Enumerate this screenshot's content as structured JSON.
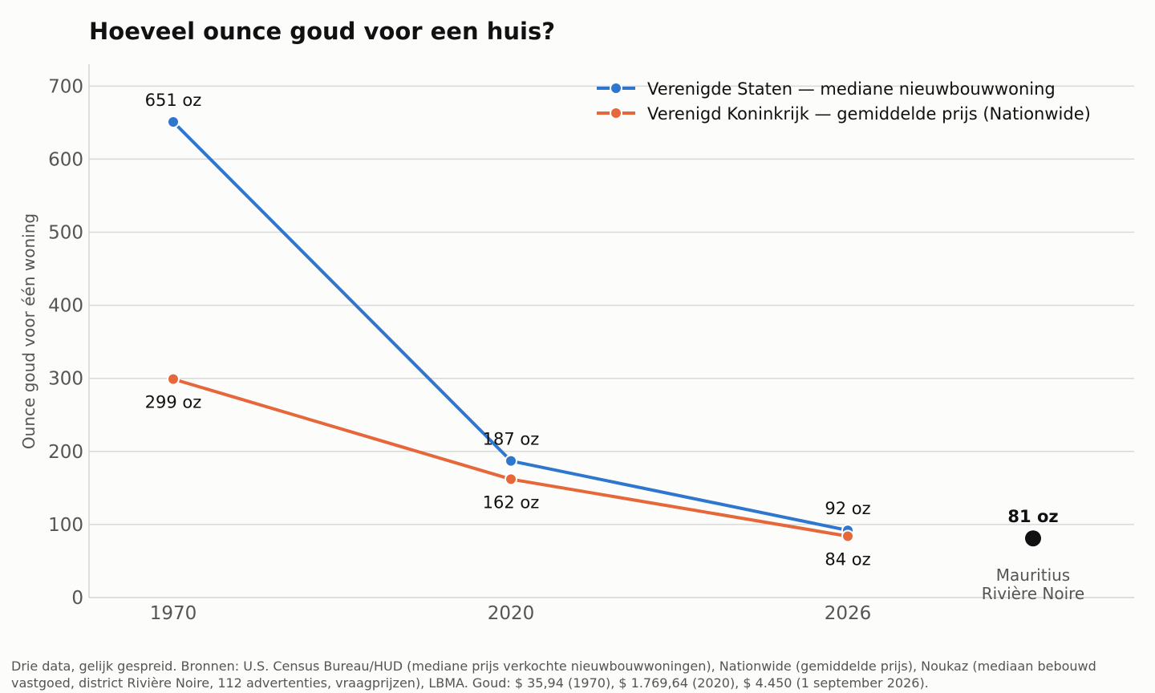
{
  "chart_data": {
    "type": "line",
    "title": "Hoeveel ounce goud voor een huis?",
    "xlabel": "",
    "ylabel": "Ounce goud voor één woning",
    "ylim": [
      0,
      730
    ],
    "yticks": [
      0,
      100,
      200,
      300,
      400,
      500,
      600,
      700
    ],
    "categories": [
      "1970",
      "2020",
      "2026"
    ],
    "grid": "horizontal",
    "legend_position": "top-right",
    "series": [
      {
        "name": "Verenigde Staten — mediane nieuwbouwwoning",
        "color": "#2f76cf",
        "values": [
          651,
          187,
          92
        ],
        "labels": [
          "651 oz",
          "187 oz",
          "92 oz"
        ]
      },
      {
        "name": "Verenigd Koninkrijk — gemiddelde prijs (Nationwide)",
        "color": "#e5673a",
        "values": [
          299,
          162,
          84
        ],
        "labels": [
          "299 oz",
          "162 oz",
          "84 oz"
        ]
      }
    ],
    "highlight": {
      "value": 81,
      "label": "81 oz",
      "category_line1": "Mauritius",
      "category_line2": "Rivière Noire",
      "color": "#111111"
    }
  },
  "footnote": {
    "line1": "Drie data, gelijk gespreid. Bronnen: U.S. Census Bureau/HUD (mediane prijs verkochte nieuwbouwwoningen), Nationwide (gemiddelde prijs), Noukaz (mediaan bebouwd",
    "line2": "vastgoed, district Rivière Noire, 112 advertenties, vraagprijzen), LBMA. Goud: $ 35,94 (1970), $ 1.769,64 (2020), $ 4.450 (1 september 2026)."
  }
}
